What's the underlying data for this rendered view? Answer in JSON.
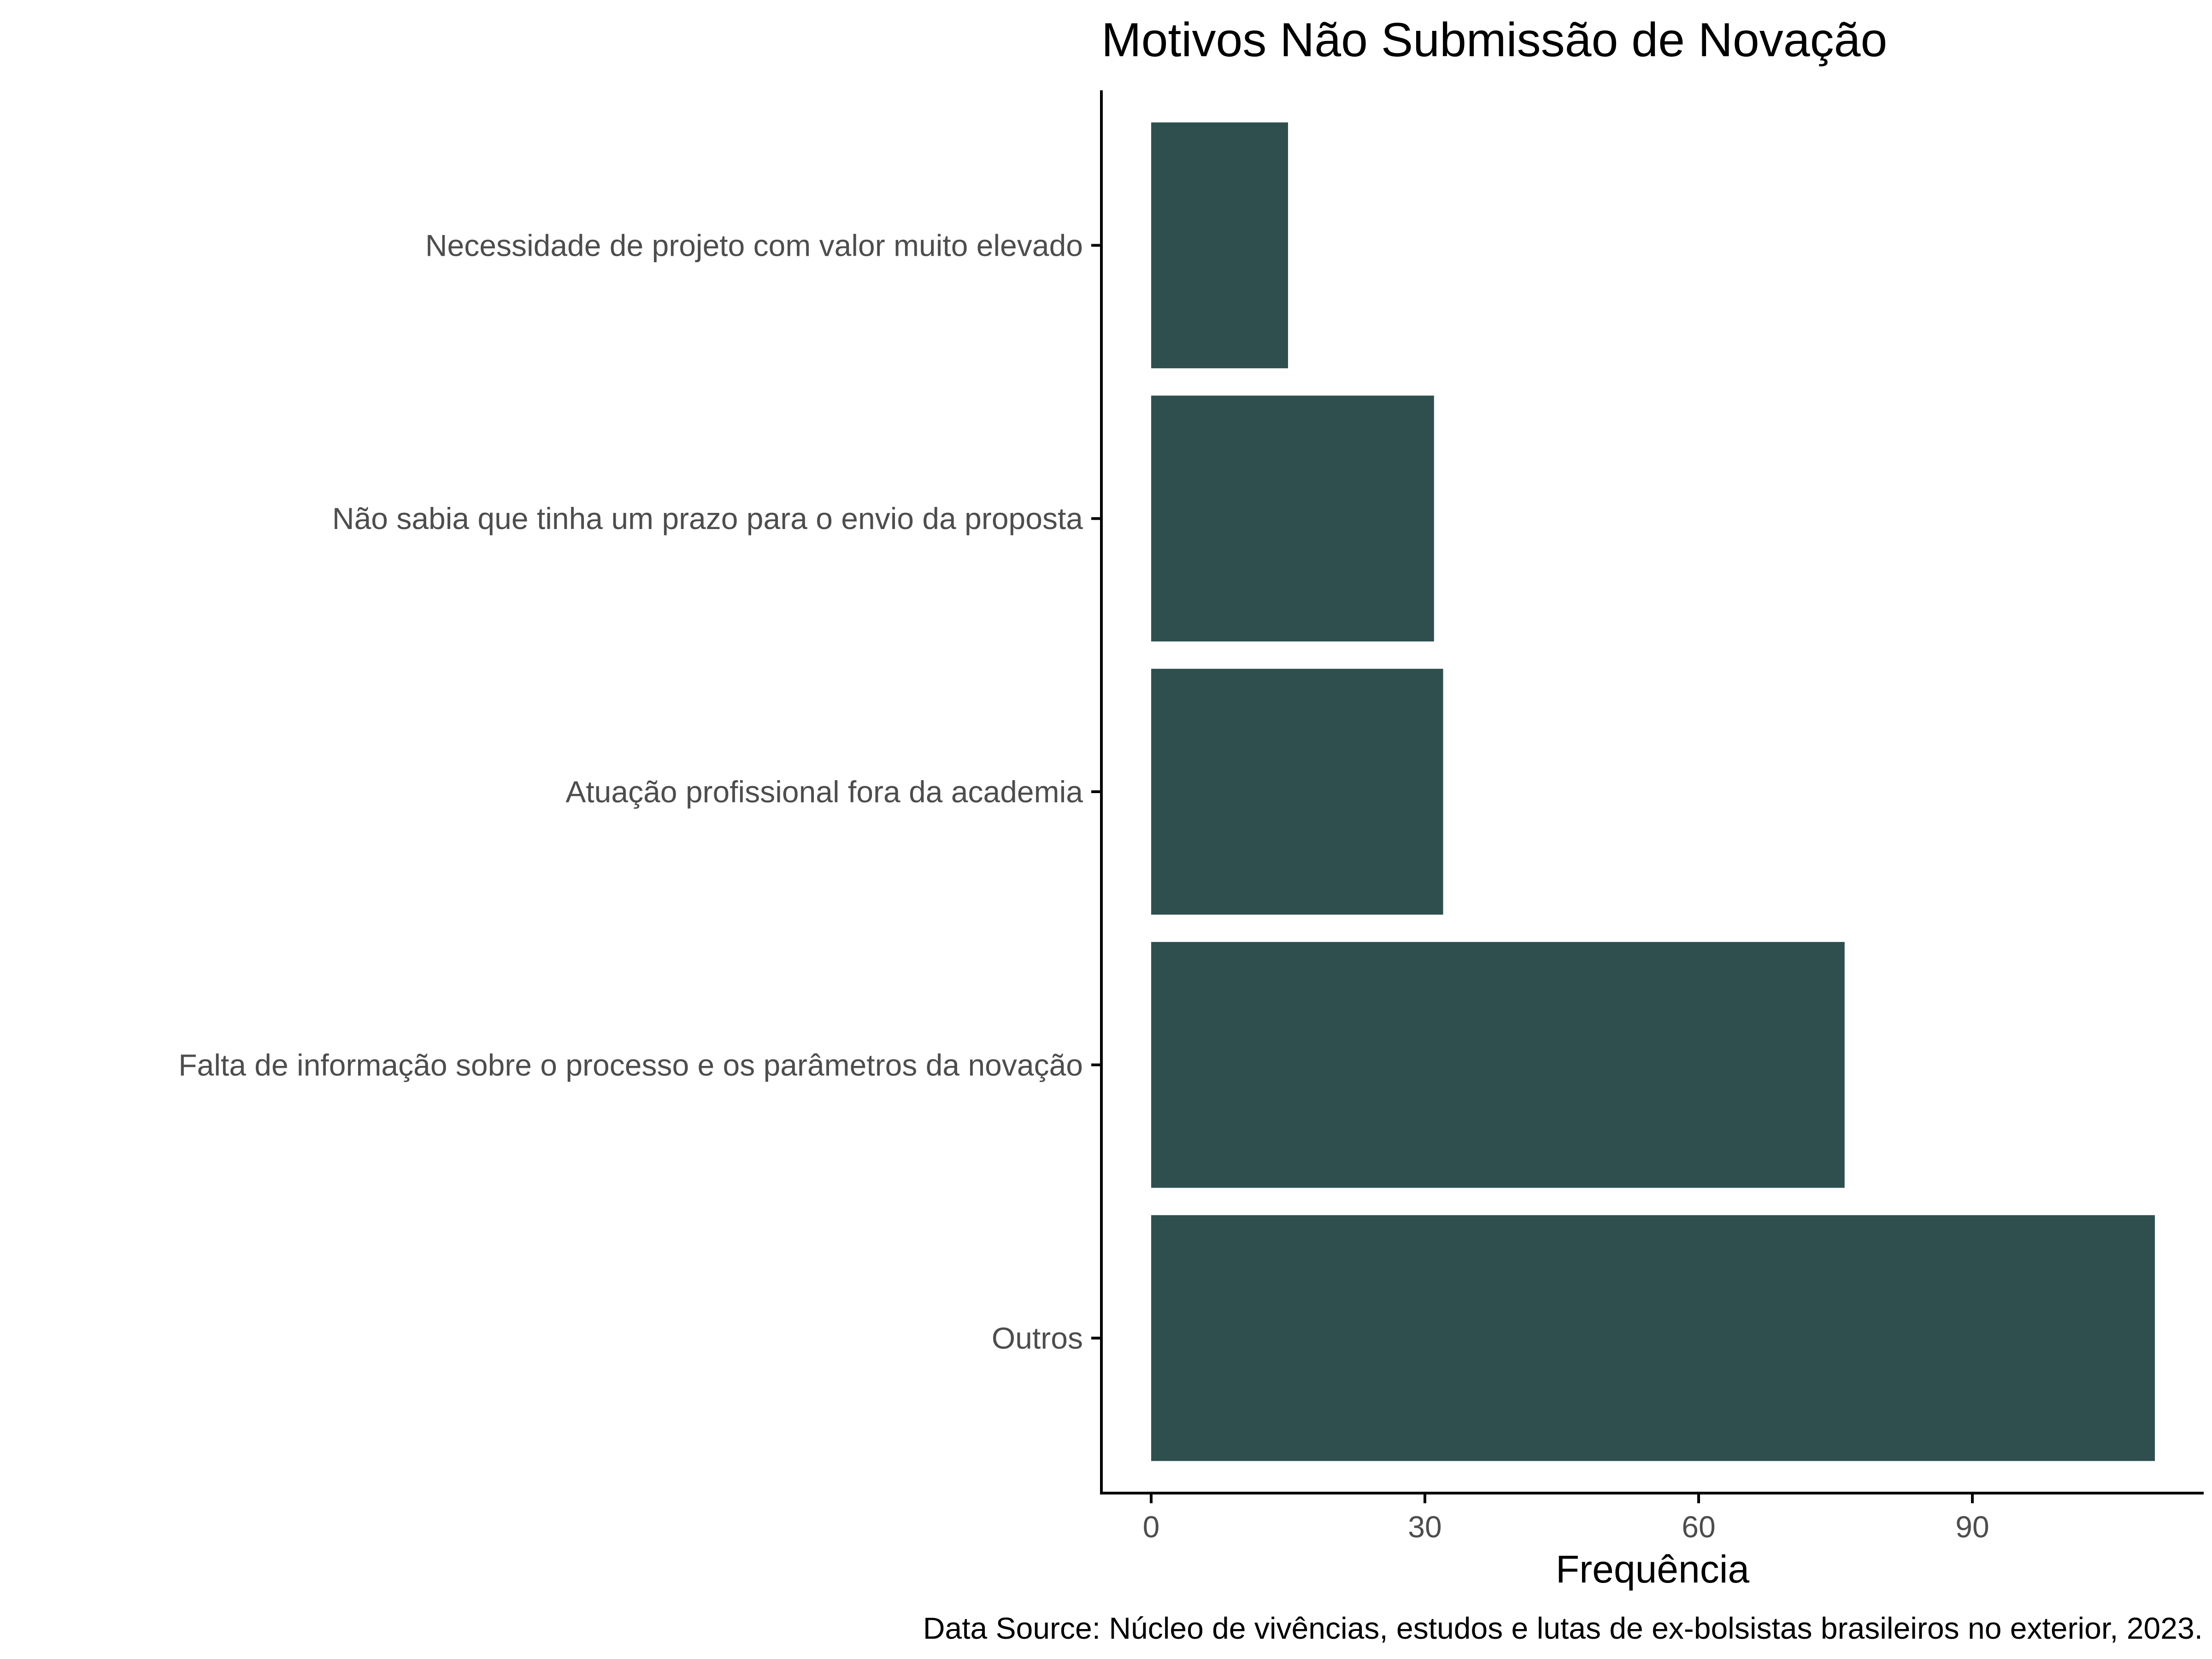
{
  "chart_data": {
    "type": "bar",
    "orientation": "horizontal",
    "title": "Motivos Não Submissão de Novação",
    "xlabel": "Frequência",
    "ylabel": "",
    "caption": "Data Source: Núcleo de vivências, estudos e lutas de ex-bolsistas brasileiros no exterior, 2023.",
    "categories": [
      "Necessidade de projeto com valor muito elevado",
      "Não sabia que tinha um prazo para o envio da proposta",
      "Atuação profissional fora da academia",
      "Falta de informação sobre o processo e os parâmetros da novação",
      "Outros"
    ],
    "values": [
      15,
      31,
      32,
      76,
      110
    ],
    "xlim": [
      0,
      115
    ],
    "xticks": [
      0,
      30,
      60,
      90
    ],
    "grid": false,
    "legend": "none",
    "bar_color": "#2f4f4f"
  }
}
